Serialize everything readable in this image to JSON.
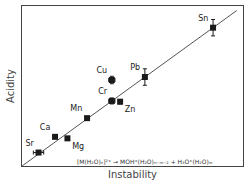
{
  "chart_data": {
    "type": "scatter",
    "xlabel": "Instability",
    "ylabel": "Acidity",
    "xlim": [
      -0.02,
      1.05
    ],
    "ylim": [
      -0.02,
      1.05
    ],
    "tick_labels": false,
    "grid": false,
    "series": [
      {
        "type": "line",
        "color": "#555555",
        "x": [
          -0.02,
          1.02
        ],
        "values": [
          -0.02,
          1.02
        ]
      },
      {
        "type": "scatter",
        "marker": "square",
        "color": "#1a1a1a",
        "labels": [
          "Sr",
          "Ca",
          "Mg",
          "Mn",
          "Cr",
          "Zn",
          "Cu",
          "Pb",
          "Sn"
        ],
        "x": [
          0.06,
          0.14,
          0.2,
          0.295,
          0.415,
          0.455,
          0.415,
          0.575,
          0.905
        ],
        "values": [
          0.07,
          0.175,
          0.165,
          0.3,
          0.415,
          0.41,
          0.555,
          0.575,
          0.905
        ],
        "xerr": [
          0.025,
          0.0,
          0.0,
          0.0,
          0.015,
          0.0,
          0.015,
          0.0,
          0.01
        ],
        "yerr": [
          0.0,
          0.0,
          0.0,
          0.0,
          0.02,
          0.015,
          0.025,
          0.055,
          0.055
        ]
      }
    ],
    "annotations": [
      "[M(H₂O)ₙ]²⁺ → MOH⁺(H₂O)ₙ₋ₘ₋₂ + H₃O⁺(H₂O)ₘ"
    ]
  }
}
